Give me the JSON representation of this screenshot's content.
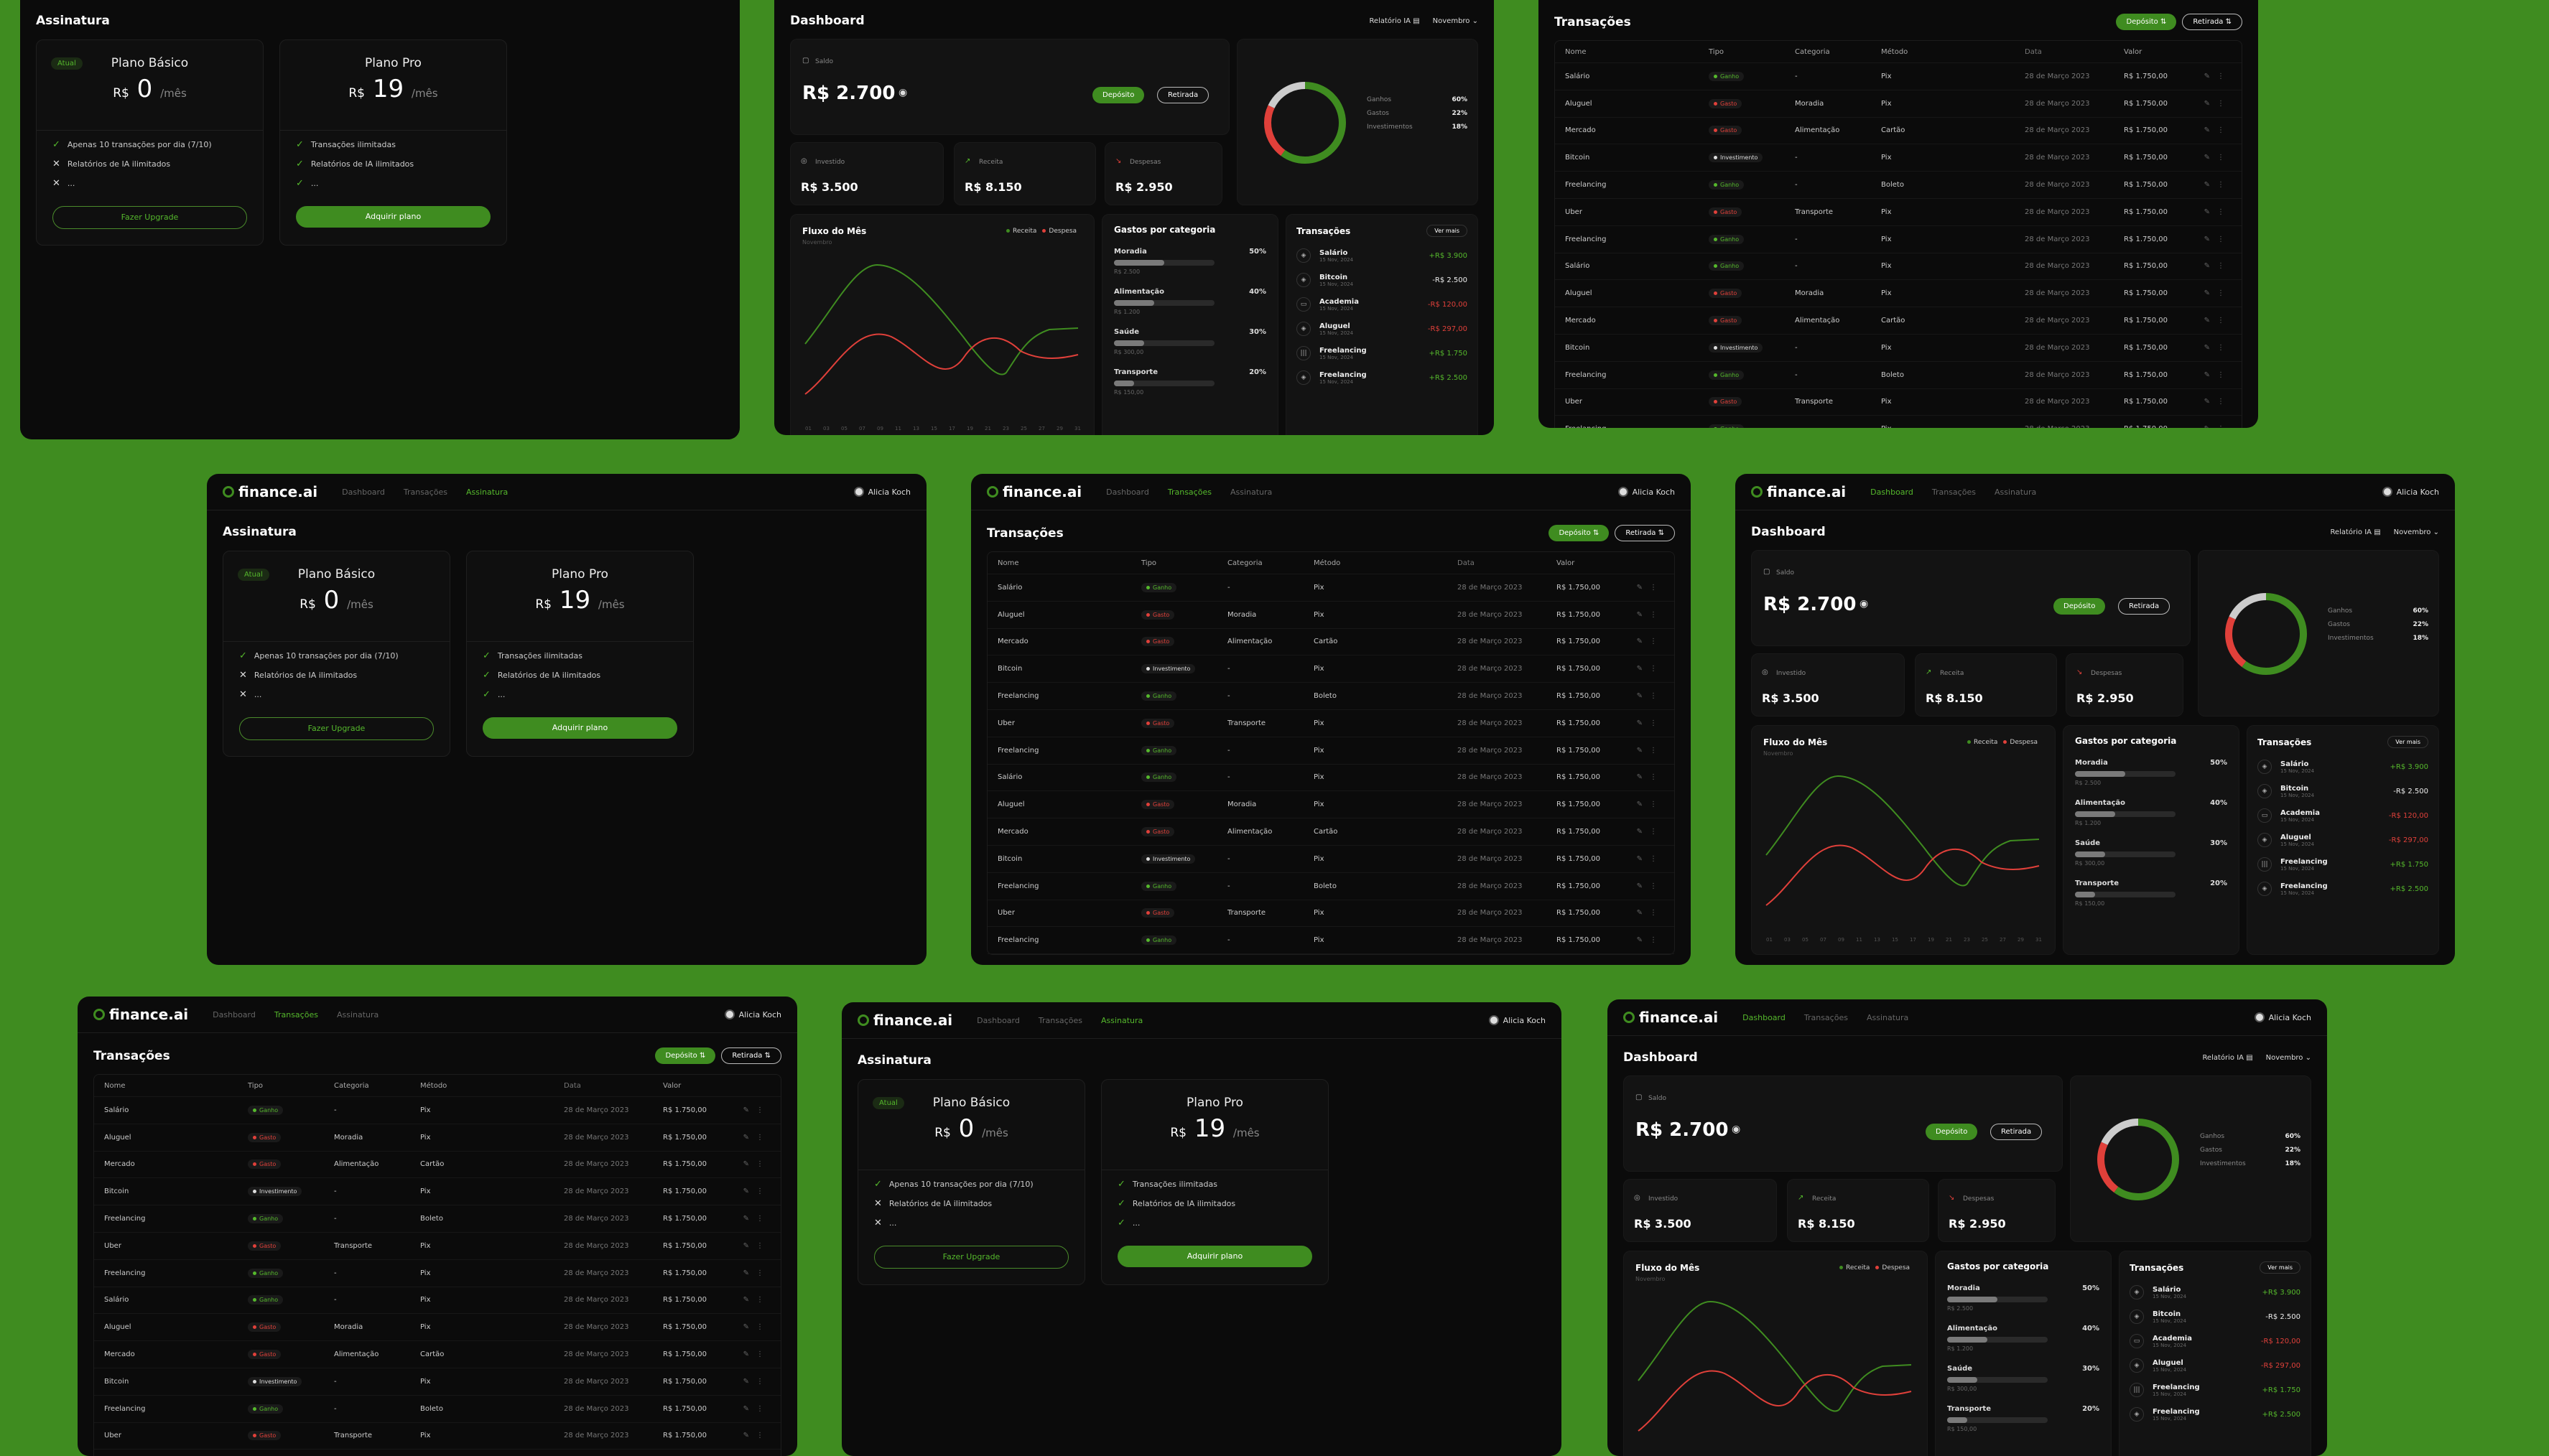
{
  "app": {
    "logo": "finance.ai",
    "nav": [
      "Dashboard",
      "Transações",
      "Assinatura"
    ],
    "user": "Alicia Koch"
  },
  "subscription": {
    "title": "Assinatura",
    "basic": {
      "badge": "Atual",
      "name": "Plano Básico",
      "currency": "R$",
      "price": "0",
      "period": "/mês",
      "features": [
        {
          "icon": "check-icon",
          "text": "Apenas 10 transações por dia (7/10)"
        },
        {
          "icon": "x-icon",
          "text": "Relatórios de IA ilimitados"
        },
        {
          "icon": "x-icon",
          "text": "..."
        }
      ],
      "button": "Fazer Upgrade"
    },
    "pro": {
      "name": "Plano Pro",
      "currency": "R$",
      "price": "19",
      "period": "/mês",
      "features": [
        {
          "icon": "check-icon",
          "text": "Transações ilimitadas"
        },
        {
          "icon": "check-icon",
          "text": "Relatórios de IA ilimitados"
        },
        {
          "icon": "check-icon",
          "text": "..."
        }
      ],
      "button": "Adquirir plano"
    }
  },
  "transactions": {
    "title": "Transações",
    "deposit": "Depósito",
    "withdraw": "Retirada",
    "columns": [
      "Nome",
      "Tipo",
      "Categoria",
      "Método",
      "Data",
      "Valor"
    ],
    "rows": [
      {
        "name": "Salário",
        "type": "Ganho",
        "kind": "g",
        "category": "-",
        "method": "Pix",
        "date": "28 de Março 2023",
        "value": "R$ 1.750,00"
      },
      {
        "name": "Aluguel",
        "type": "Gasto",
        "kind": "r",
        "category": "Moradia",
        "method": "Pix",
        "date": "28 de Março 2023",
        "value": "R$ 1.750,00"
      },
      {
        "name": "Mercado",
        "type": "Gasto",
        "kind": "r",
        "category": "Alimentação",
        "method": "Cartão",
        "date": "28 de Março 2023",
        "value": "R$ 1.750,00"
      },
      {
        "name": "Bitcoin",
        "type": "Investimento",
        "kind": "w",
        "category": "-",
        "method": "Pix",
        "date": "28 de Março 2023",
        "value": "R$ 1.750,00"
      },
      {
        "name": "Freelancing",
        "type": "Ganho",
        "kind": "g",
        "category": "-",
        "method": "Boleto",
        "date": "28 de Março 2023",
        "value": "R$ 1.750,00"
      },
      {
        "name": "Uber",
        "type": "Gasto",
        "kind": "r",
        "category": "Transporte",
        "method": "Pix",
        "date": "28 de Março 2023",
        "value": "R$ 1.750,00"
      },
      {
        "name": "Freelancing",
        "type": "Ganho",
        "kind": "g",
        "category": "-",
        "method": "Pix",
        "date": "28 de Março 2023",
        "value": "R$ 1.750,00"
      },
      {
        "name": "Salário",
        "type": "Ganho",
        "kind": "g",
        "category": "-",
        "method": "Pix",
        "date": "28 de Março 2023",
        "value": "R$ 1.750,00"
      },
      {
        "name": "Aluguel",
        "type": "Gasto",
        "kind": "r",
        "category": "Moradia",
        "method": "Pix",
        "date": "28 de Março 2023",
        "value": "R$ 1.750,00"
      },
      {
        "name": "Mercado",
        "type": "Gasto",
        "kind": "r",
        "category": "Alimentação",
        "method": "Cartão",
        "date": "28 de Março 2023",
        "value": "R$ 1.750,00"
      },
      {
        "name": "Bitcoin",
        "type": "Investimento",
        "kind": "w",
        "category": "-",
        "method": "Pix",
        "date": "28 de Março 2023",
        "value": "R$ 1.750,00"
      },
      {
        "name": "Freelancing",
        "type": "Ganho",
        "kind": "g",
        "category": "-",
        "method": "Boleto",
        "date": "28 de Março 2023",
        "value": "R$ 1.750,00"
      },
      {
        "name": "Uber",
        "type": "Gasto",
        "kind": "r",
        "category": "Transporte",
        "method": "Pix",
        "date": "28 de Março 2023",
        "value": "R$ 1.750,00"
      },
      {
        "name": "Freelancing",
        "type": "Ganho",
        "kind": "g",
        "category": "-",
        "method": "Pix",
        "date": "28 de Março 2023",
        "value": "R$ 1.750,00"
      }
    ]
  },
  "dashboard": {
    "title": "Dashboard",
    "ai_report": "Relatório IA",
    "month": "Novembro",
    "balance_label": "Saldo",
    "balance": "R$ 2.700",
    "deposit": "Depósito",
    "withdraw": "Retirada",
    "invested_label": "Investido",
    "invested": "R$ 3.500",
    "income_label": "Receita",
    "income": "R$ 8.150",
    "expenses_label": "Despesas",
    "expenses": "R$ 2.950",
    "pie": [
      {
        "label": "Ganhos",
        "value": "60%",
        "color": "#3f8c20"
      },
      {
        "label": "Gastos",
        "value": "22%",
        "color": "#e0403a"
      },
      {
        "label": "Investimentos",
        "value": "18%",
        "color": "#cccccc"
      }
    ],
    "flow_title": "Fluxo do Mês",
    "flow_sub": "Novembro",
    "flow_legend": [
      "Receita",
      "Despesa"
    ],
    "flow_x": [
      "01",
      "03",
      "05",
      "07",
      "09",
      "11",
      "13",
      "15",
      "17",
      "19",
      "21",
      "23",
      "25",
      "27",
      "29",
      "31"
    ],
    "categories_title": "Gastos por categoria",
    "categories": [
      {
        "name": "Moradia",
        "pct": "50%",
        "fill": 0.5,
        "amount": "R$ 2.500"
      },
      {
        "name": "Alimentação",
        "pct": "40%",
        "fill": 0.4,
        "amount": "R$ 1.200"
      },
      {
        "name": "Saúde",
        "pct": "30%",
        "fill": 0.3,
        "amount": "R$ 300,00"
      },
      {
        "name": "Transporte",
        "pct": "20%",
        "fill": 0.2,
        "amount": "R$ 150,00"
      }
    ],
    "tx_title": "Transações",
    "tx_more": "Ver mais",
    "tx_items": [
      {
        "name": "Salário",
        "date": "15 Nov, 2024",
        "amount": "+R$ 3.900",
        "kind": "g",
        "icon": "pix-icon"
      },
      {
        "name": "Bitcoin",
        "date": "15 Nov, 2024",
        "amount": "-R$ 2.500",
        "kind": "w",
        "icon": "pix-icon"
      },
      {
        "name": "Academia",
        "date": "15 Nov, 2024",
        "amount": "-R$ 120,00",
        "kind": "r",
        "icon": "card-icon"
      },
      {
        "name": "Aluguel",
        "date": "15 Nov, 2024",
        "amount": "-R$ 297,00",
        "kind": "r",
        "icon": "pix-icon"
      },
      {
        "name": "Freelancing",
        "date": "15 Nov, 2024",
        "amount": "+R$ 1.750",
        "kind": "g",
        "icon": "barcode-icon"
      },
      {
        "name": "Freelancing",
        "date": "15 Nov, 2024",
        "amount": "+R$ 2.500",
        "kind": "g",
        "icon": "pix-icon"
      }
    ]
  }
}
